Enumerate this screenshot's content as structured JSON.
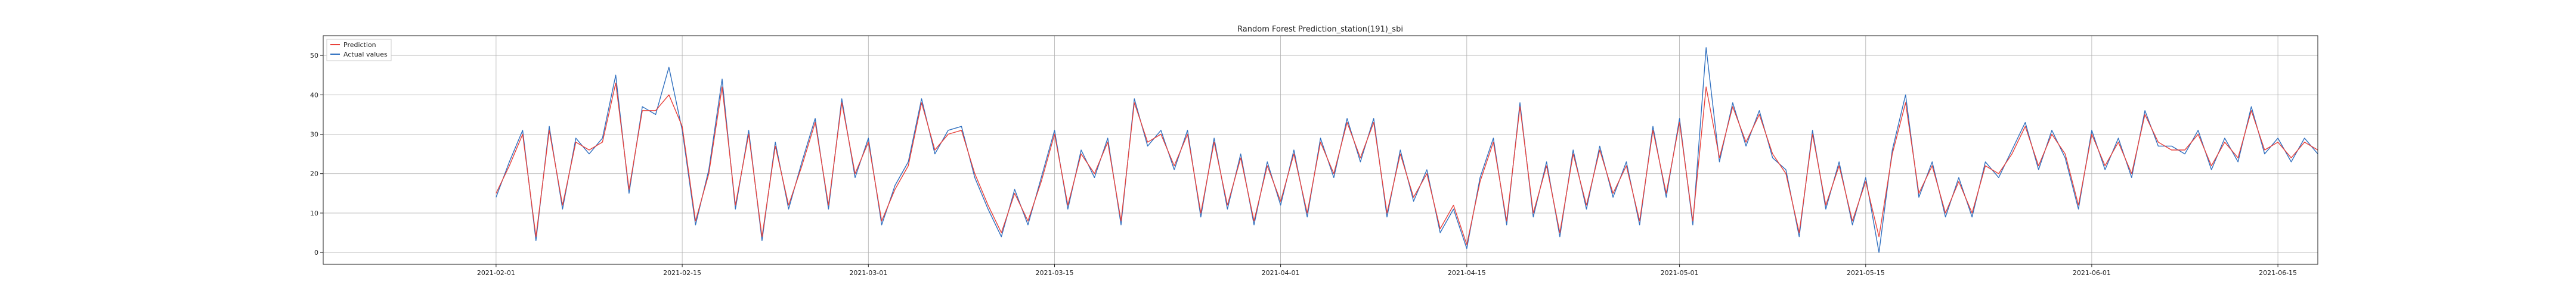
{
  "chart_data": {
    "type": "line",
    "title": "Random Forest Prediction_station(191)_sbi",
    "xlabel": "",
    "ylabel": "",
    "grid": true,
    "legend": {
      "placement": "top-left",
      "entries": [
        {
          "name": "Prediction",
          "color": "#e8413b"
        },
        {
          "name": "Actual values",
          "color": "#2f6fbf"
        }
      ]
    },
    "x_range": [
      "2021-01-19",
      "2021-06-18"
    ],
    "ylim": [
      -3,
      55
    ],
    "x_ticks": [
      "2021-02-01",
      "2021-02-15",
      "2021-03-01",
      "2021-03-15",
      "2021-04-01",
      "2021-04-15",
      "2021-05-01",
      "2021-05-15",
      "2021-06-01",
      "2021-06-15"
    ],
    "y_ticks": [
      0,
      10,
      20,
      30,
      40,
      50
    ],
    "series": [
      {
        "name": "Prediction",
        "color": "#e8413b",
        "points": [
          [
            "2021-02-01",
            15
          ],
          [
            "2021-02-02",
            22
          ],
          [
            "2021-02-03",
            30
          ],
          [
            "2021-02-04",
            4
          ],
          [
            "2021-02-05",
            31
          ],
          [
            "2021-02-06",
            12
          ],
          [
            "2021-02-07",
            28
          ],
          [
            "2021-02-08",
            26
          ],
          [
            "2021-02-09",
            28
          ],
          [
            "2021-02-10",
            43
          ],
          [
            "2021-02-11",
            16
          ],
          [
            "2021-02-12",
            36
          ],
          [
            "2021-02-13",
            36
          ],
          [
            "2021-02-14",
            40
          ],
          [
            "2021-02-15",
            32
          ],
          [
            "2021-02-16",
            8
          ],
          [
            "2021-02-17",
            20
          ],
          [
            "2021-02-18",
            42
          ],
          [
            "2021-02-19",
            12
          ],
          [
            "2021-02-20",
            30
          ],
          [
            "2021-02-21",
            4
          ],
          [
            "2021-02-22",
            27
          ],
          [
            "2021-02-23",
            12
          ],
          [
            "2021-02-24",
            22
          ],
          [
            "2021-02-25",
            33
          ],
          [
            "2021-02-26",
            12
          ],
          [
            "2021-02-27",
            38
          ],
          [
            "2021-02-28",
            20
          ],
          [
            "2021-03-01",
            28
          ],
          [
            "2021-03-02",
            8
          ],
          [
            "2021-03-03",
            16
          ],
          [
            "2021-03-04",
            22
          ],
          [
            "2021-03-05",
            38
          ],
          [
            "2021-03-06",
            26
          ],
          [
            "2021-03-07",
            30
          ],
          [
            "2021-03-08",
            31
          ],
          [
            "2021-03-09",
            20
          ],
          [
            "2021-03-10",
            12
          ],
          [
            "2021-03-11",
            5
          ],
          [
            "2021-03-12",
            15
          ],
          [
            "2021-03-13",
            8
          ],
          [
            "2021-03-14",
            18
          ],
          [
            "2021-03-15",
            30
          ],
          [
            "2021-03-16",
            12
          ],
          [
            "2021-03-17",
            25
          ],
          [
            "2021-03-18",
            20
          ],
          [
            "2021-03-19",
            28
          ],
          [
            "2021-03-20",
            8
          ],
          [
            "2021-03-21",
            38
          ],
          [
            "2021-03-22",
            28
          ],
          [
            "2021-03-23",
            30
          ],
          [
            "2021-03-24",
            22
          ],
          [
            "2021-03-25",
            30
          ],
          [
            "2021-03-26",
            10
          ],
          [
            "2021-03-27",
            28
          ],
          [
            "2021-03-28",
            12
          ],
          [
            "2021-03-29",
            24
          ],
          [
            "2021-03-30",
            8
          ],
          [
            "2021-03-31",
            22
          ],
          [
            "2021-04-01",
            13
          ],
          [
            "2021-04-02",
            25
          ],
          [
            "2021-04-03",
            10
          ],
          [
            "2021-04-04",
            28
          ],
          [
            "2021-04-05",
            20
          ],
          [
            "2021-04-06",
            33
          ],
          [
            "2021-04-07",
            24
          ],
          [
            "2021-04-08",
            33
          ],
          [
            "2021-04-09",
            10
          ],
          [
            "2021-04-10",
            25
          ],
          [
            "2021-04-11",
            14
          ],
          [
            "2021-04-12",
            20
          ],
          [
            "2021-04-13",
            6
          ],
          [
            "2021-04-14",
            12
          ],
          [
            "2021-04-15",
            2
          ],
          [
            "2021-04-16",
            18
          ],
          [
            "2021-04-17",
            28
          ],
          [
            "2021-04-18",
            8
          ],
          [
            "2021-04-19",
            37
          ],
          [
            "2021-04-20",
            10
          ],
          [
            "2021-04-21",
            22
          ],
          [
            "2021-04-22",
            5
          ],
          [
            "2021-04-23",
            25
          ],
          [
            "2021-04-24",
            12
          ],
          [
            "2021-04-25",
            26
          ],
          [
            "2021-04-26",
            15
          ],
          [
            "2021-04-27",
            22
          ],
          [
            "2021-04-28",
            8
          ],
          [
            "2021-04-29",
            31
          ],
          [
            "2021-04-30",
            15
          ],
          [
            "2021-05-01",
            33
          ],
          [
            "2021-05-02",
            8
          ],
          [
            "2021-05-03",
            42
          ],
          [
            "2021-05-04",
            24
          ],
          [
            "2021-05-05",
            37
          ],
          [
            "2021-05-06",
            28
          ],
          [
            "2021-05-07",
            35
          ],
          [
            "2021-05-08",
            25
          ],
          [
            "2021-05-09",
            20
          ],
          [
            "2021-05-10",
            5
          ],
          [
            "2021-05-11",
            30
          ],
          [
            "2021-05-12",
            12
          ],
          [
            "2021-05-13",
            22
          ],
          [
            "2021-05-14",
            8
          ],
          [
            "2021-05-15",
            18
          ],
          [
            "2021-05-16",
            4
          ],
          [
            "2021-05-17",
            25
          ],
          [
            "2021-05-18",
            38
          ],
          [
            "2021-05-19",
            15
          ],
          [
            "2021-05-20",
            22
          ],
          [
            "2021-05-21",
            10
          ],
          [
            "2021-05-22",
            18
          ],
          [
            "2021-05-23",
            10
          ],
          [
            "2021-05-24",
            22
          ],
          [
            "2021-05-25",
            20
          ],
          [
            "2021-05-26",
            25
          ],
          [
            "2021-05-27",
            32
          ],
          [
            "2021-05-28",
            22
          ],
          [
            "2021-05-29",
            30
          ],
          [
            "2021-05-30",
            25
          ],
          [
            "2021-05-31",
            12
          ],
          [
            "2021-06-01",
            30
          ],
          [
            "2021-06-02",
            22
          ],
          [
            "2021-06-03",
            28
          ],
          [
            "2021-06-04",
            20
          ],
          [
            "2021-06-05",
            35
          ],
          [
            "2021-06-06",
            28
          ],
          [
            "2021-06-07",
            26
          ],
          [
            "2021-06-08",
            26
          ],
          [
            "2021-06-09",
            30
          ],
          [
            "2021-06-10",
            22
          ],
          [
            "2021-06-11",
            28
          ],
          [
            "2021-06-12",
            24
          ],
          [
            "2021-06-13",
            36
          ],
          [
            "2021-06-14",
            26
          ],
          [
            "2021-06-15",
            28
          ],
          [
            "2021-06-16",
            24
          ],
          [
            "2021-06-17",
            28
          ],
          [
            "2021-06-18",
            26
          ]
        ]
      },
      {
        "name": "Actual values",
        "color": "#2f6fbf",
        "points": [
          [
            "2021-02-01",
            14
          ],
          [
            "2021-02-02",
            23
          ],
          [
            "2021-02-03",
            31
          ],
          [
            "2021-02-04",
            3
          ],
          [
            "2021-02-05",
            32
          ],
          [
            "2021-02-06",
            11
          ],
          [
            "2021-02-07",
            29
          ],
          [
            "2021-02-08",
            25
          ],
          [
            "2021-02-09",
            29
          ],
          [
            "2021-02-10",
            45
          ],
          [
            "2021-02-11",
            15
          ],
          [
            "2021-02-12",
            37
          ],
          [
            "2021-02-13",
            35
          ],
          [
            "2021-02-14",
            47
          ],
          [
            "2021-02-15",
            31
          ],
          [
            "2021-02-16",
            7
          ],
          [
            "2021-02-17",
            21
          ],
          [
            "2021-02-18",
            44
          ],
          [
            "2021-02-19",
            11
          ],
          [
            "2021-02-20",
            31
          ],
          [
            "2021-02-21",
            3
          ],
          [
            "2021-02-22",
            28
          ],
          [
            "2021-02-23",
            11
          ],
          [
            "2021-02-24",
            23
          ],
          [
            "2021-02-25",
            34
          ],
          [
            "2021-02-26",
            11
          ],
          [
            "2021-02-27",
            39
          ],
          [
            "2021-02-28",
            19
          ],
          [
            "2021-03-01",
            29
          ],
          [
            "2021-03-02",
            7
          ],
          [
            "2021-03-03",
            17
          ],
          [
            "2021-03-04",
            23
          ],
          [
            "2021-03-05",
            39
          ],
          [
            "2021-03-06",
            25
          ],
          [
            "2021-03-07",
            31
          ],
          [
            "2021-03-08",
            32
          ],
          [
            "2021-03-09",
            19
          ],
          [
            "2021-03-10",
            11
          ],
          [
            "2021-03-11",
            4
          ],
          [
            "2021-03-12",
            16
          ],
          [
            "2021-03-13",
            7
          ],
          [
            "2021-03-14",
            19
          ],
          [
            "2021-03-15",
            31
          ],
          [
            "2021-03-16",
            11
          ],
          [
            "2021-03-17",
            26
          ],
          [
            "2021-03-18",
            19
          ],
          [
            "2021-03-19",
            29
          ],
          [
            "2021-03-20",
            7
          ],
          [
            "2021-03-21",
            39
          ],
          [
            "2021-03-22",
            27
          ],
          [
            "2021-03-23",
            31
          ],
          [
            "2021-03-24",
            21
          ],
          [
            "2021-03-25",
            31
          ],
          [
            "2021-03-26",
            9
          ],
          [
            "2021-03-27",
            29
          ],
          [
            "2021-03-28",
            11
          ],
          [
            "2021-03-29",
            25
          ],
          [
            "2021-03-30",
            7
          ],
          [
            "2021-03-31",
            23
          ],
          [
            "2021-04-01",
            12
          ],
          [
            "2021-04-02",
            26
          ],
          [
            "2021-04-03",
            9
          ],
          [
            "2021-04-04",
            29
          ],
          [
            "2021-04-05",
            19
          ],
          [
            "2021-04-06",
            34
          ],
          [
            "2021-04-07",
            23
          ],
          [
            "2021-04-08",
            34
          ],
          [
            "2021-04-09",
            9
          ],
          [
            "2021-04-10",
            26
          ],
          [
            "2021-04-11",
            13
          ],
          [
            "2021-04-12",
            21
          ],
          [
            "2021-04-13",
            5
          ],
          [
            "2021-04-14",
            11
          ],
          [
            "2021-04-15",
            1
          ],
          [
            "2021-04-16",
            19
          ],
          [
            "2021-04-17",
            29
          ],
          [
            "2021-04-18",
            7
          ],
          [
            "2021-04-19",
            38
          ],
          [
            "2021-04-20",
            9
          ],
          [
            "2021-04-21",
            23
          ],
          [
            "2021-04-22",
            4
          ],
          [
            "2021-04-23",
            26
          ],
          [
            "2021-04-24",
            11
          ],
          [
            "2021-04-25",
            27
          ],
          [
            "2021-04-26",
            14
          ],
          [
            "2021-04-27",
            23
          ],
          [
            "2021-04-28",
            7
          ],
          [
            "2021-04-29",
            32
          ],
          [
            "2021-04-30",
            14
          ],
          [
            "2021-05-01",
            34
          ],
          [
            "2021-05-02",
            7
          ],
          [
            "2021-05-03",
            52
          ],
          [
            "2021-05-04",
            23
          ],
          [
            "2021-05-05",
            38
          ],
          [
            "2021-05-06",
            27
          ],
          [
            "2021-05-07",
            36
          ],
          [
            "2021-05-08",
            24
          ],
          [
            "2021-05-09",
            21
          ],
          [
            "2021-05-10",
            4
          ],
          [
            "2021-05-11",
            31
          ],
          [
            "2021-05-12",
            11
          ],
          [
            "2021-05-13",
            23
          ],
          [
            "2021-05-14",
            7
          ],
          [
            "2021-05-15",
            19
          ],
          [
            "2021-05-16",
            0
          ],
          [
            "2021-05-17",
            26
          ],
          [
            "2021-05-18",
            40
          ],
          [
            "2021-05-19",
            14
          ],
          [
            "2021-05-20",
            23
          ],
          [
            "2021-05-21",
            9
          ],
          [
            "2021-05-22",
            19
          ],
          [
            "2021-05-23",
            9
          ],
          [
            "2021-05-24",
            23
          ],
          [
            "2021-05-25",
            19
          ],
          [
            "2021-05-26",
            26
          ],
          [
            "2021-05-27",
            33
          ],
          [
            "2021-05-28",
            21
          ],
          [
            "2021-05-29",
            31
          ],
          [
            "2021-05-30",
            24
          ],
          [
            "2021-05-31",
            11
          ],
          [
            "2021-06-01",
            31
          ],
          [
            "2021-06-02",
            21
          ],
          [
            "2021-06-03",
            29
          ],
          [
            "2021-06-04",
            19
          ],
          [
            "2021-06-05",
            36
          ],
          [
            "2021-06-06",
            27
          ],
          [
            "2021-06-07",
            27
          ],
          [
            "2021-06-08",
            25
          ],
          [
            "2021-06-09",
            31
          ],
          [
            "2021-06-10",
            21
          ],
          [
            "2021-06-11",
            29
          ],
          [
            "2021-06-12",
            23
          ],
          [
            "2021-06-13",
            37
          ],
          [
            "2021-06-14",
            25
          ],
          [
            "2021-06-15",
            29
          ],
          [
            "2021-06-16",
            23
          ],
          [
            "2021-06-17",
            29
          ],
          [
            "2021-06-18",
            25
          ]
        ]
      }
    ]
  }
}
